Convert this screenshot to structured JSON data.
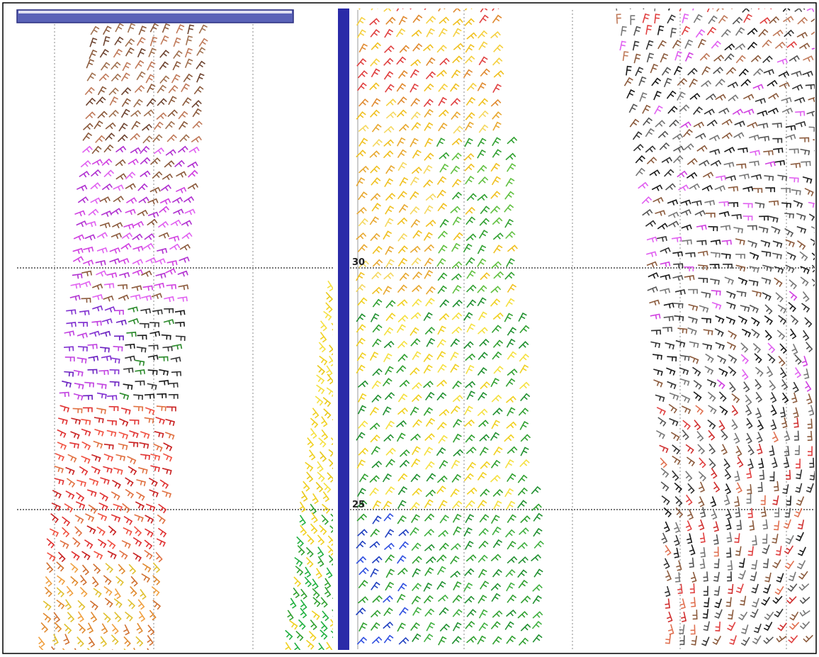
{
  "map": {
    "latitude_labels": [
      "30",
      "25"
    ]
  }
}
